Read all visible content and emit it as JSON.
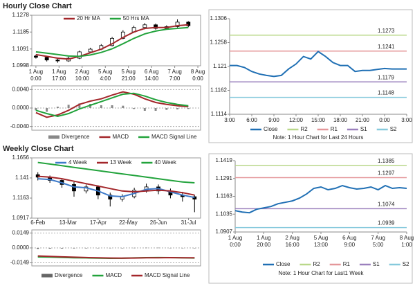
{
  "headings": [
    "Hourly Close Chart",
    "Weekly Close Chart"
  ],
  "chart_data": [
    {
      "type": "candlestick",
      "legend": "top",
      "x": [
        0,
        8,
        16,
        24,
        32,
        40,
        48,
        56,
        64,
        72,
        80,
        88,
        96,
        104,
        112
      ],
      "ohlc": {
        "open": [
          1.1052,
          1.1045,
          1.103,
          1.1025,
          1.104,
          1.1075,
          1.109,
          1.111,
          1.115,
          1.1185,
          1.121,
          1.1225,
          1.1205,
          1.1215,
          1.124
        ],
        "high": [
          1.106,
          1.105,
          1.1038,
          1.1048,
          1.1082,
          1.1098,
          1.1118,
          1.1158,
          1.1195,
          1.122,
          1.1235,
          1.1232,
          1.1222,
          1.1255,
          1.1245
        ],
        "low": [
          1.1038,
          1.1022,
          1.1015,
          1.102,
          1.1035,
          1.1068,
          1.1085,
          1.1105,
          1.1145,
          1.118,
          1.12,
          1.1198,
          1.1198,
          1.121,
          1.1212
        ],
        "close": [
          1.1045,
          1.103,
          1.1025,
          1.104,
          1.1075,
          1.109,
          1.111,
          1.115,
          1.1185,
          1.121,
          1.1225,
          1.1205,
          1.1215,
          1.124,
          1.122
        ]
      },
      "series": [
        {
          "name": "20 Hr MA",
          "color": "#a3262a",
          "values": [
            1.106,
            1.105,
            1.104,
            1.1035,
            1.105,
            1.107,
            1.109,
            1.112,
            1.1155,
            1.1185,
            1.1205,
            1.121,
            1.121,
            1.122,
            1.1225
          ]
        },
        {
          "name": "50 Hrs MA",
          "color": "#22a33c",
          "values": [
            1.1075,
            1.1068,
            1.106,
            1.1052,
            1.105,
            1.1058,
            1.1072,
            1.1092,
            1.112,
            1.115,
            1.1175,
            1.119,
            1.12,
            1.1205,
            1.121
          ]
        }
      ],
      "xlim": [
        -3,
        121
      ],
      "xticks": [
        {
          "value": 0,
          "label": [
            "1 Aug",
            "0:00"
          ]
        },
        {
          "value": 17,
          "label": [
            "1 Aug",
            "17:00"
          ]
        },
        {
          "value": 34,
          "label": [
            "2 Aug",
            "10:00"
          ]
        },
        {
          "value": 51,
          "label": [
            "5 Aug",
            "4:00"
          ]
        },
        {
          "value": 68,
          "label": [
            "5 Aug",
            "21:00"
          ]
        },
        {
          "value": 85,
          "label": [
            "6 Aug",
            "14:00"
          ]
        },
        {
          "value": 102,
          "label": [
            "7 Aug",
            "7:00"
          ]
        },
        {
          "value": 119,
          "label": [
            "8 Aug",
            "0:00"
          ]
        }
      ],
      "ylim": [
        1.0998,
        1.1278
      ],
      "yticks": [
        1.0998,
        1.1091,
        1.1185,
        1.1278
      ],
      "grid": false
    },
    {
      "type": "macd",
      "legend": "bottom",
      "x": [
        0,
        8,
        16,
        24,
        32,
        40,
        48,
        56,
        64,
        72,
        80,
        88,
        96,
        104,
        112
      ],
      "series": [
        {
          "name": "Divergence",
          "color": "#888888",
          "kind": "bar",
          "values": [
            -0.0005,
            -0.0008,
            0.0003,
            0.0007,
            0.001,
            0.0009,
            0.0006,
            0.0006,
            0.0005,
            -0.0002,
            -0.0006,
            -0.0006,
            -0.0004,
            -0.0003,
            -0.0002
          ]
        },
        {
          "name": "MACD",
          "color": "#a3262a",
          "values": [
            -0.001,
            -0.002,
            -0.0015,
            -0.0005,
            0.0008,
            0.0015,
            0.002,
            0.0028,
            0.0035,
            0.003,
            0.002,
            0.0012,
            0.0008,
            0.0005,
            0.0003
          ]
        },
        {
          "name": "MACD Signal Line",
          "color": "#22a33c",
          "values": [
            -0.0005,
            -0.0012,
            -0.0018,
            -0.0012,
            -0.0002,
            0.0006,
            0.0014,
            0.0022,
            0.003,
            0.0032,
            0.0026,
            0.0018,
            0.0012,
            0.0008,
            0.0005
          ]
        }
      ],
      "xlim": [
        -3,
        121
      ],
      "ylim": [
        -0.0048,
        0.0048
      ],
      "yticks": [
        {
          "value": 0.004,
          "label": "0.0040"
        },
        {
          "value": 0,
          "label": "0.0000"
        },
        {
          "value": -0.004,
          "label": "-0.0040"
        }
      ],
      "grid": true
    },
    {
      "type": "line",
      "legend": "bottom",
      "note": "Note: 1 Hour Chart for Last 24 Hours",
      "x": [
        0,
        1,
        2,
        3,
        4,
        5,
        6,
        7,
        8,
        9,
        10,
        11,
        12,
        13,
        14,
        15,
        16,
        17,
        18,
        19,
        20,
        21,
        22,
        23,
        24
      ],
      "series": [
        {
          "name": "Close",
          "color": "#1f6fb4",
          "values": [
            1.1212,
            1.1212,
            1.1208,
            1.12,
            1.1195,
            1.1192,
            1.119,
            1.1192,
            1.1205,
            1.1215,
            1.123,
            1.1225,
            1.124,
            1.123,
            1.1218,
            1.1212,
            1.1212,
            1.12,
            1.1202,
            1.1202,
            1.1204,
            1.1206,
            1.1205,
            1.1205,
            1.1205
          ]
        }
      ],
      "levels": [
        {
          "name": "R2",
          "color": "#b9d88a",
          "value": 1.1273
        },
        {
          "name": "R1",
          "color": "#e4979a",
          "value": 1.1241
        },
        {
          "name": "S1",
          "color": "#9b80bd",
          "value": 1.1179
        },
        {
          "name": "S2",
          "color": "#86c9dc",
          "value": 1.1148
        }
      ],
      "xlim": [
        0,
        24
      ],
      "xticks": [
        {
          "value": 0,
          "label": "3:00"
        },
        {
          "value": 3,
          "label": "6:00"
        },
        {
          "value": 6,
          "label": "9:00"
        },
        {
          "value": 9,
          "label": "12:00"
        },
        {
          "value": 12,
          "label": "15:00"
        },
        {
          "value": 15,
          "label": "18:00"
        },
        {
          "value": 18,
          "label": "21:00"
        },
        {
          "value": 21,
          "label": "0:00"
        },
        {
          "value": 24,
          "label": "3:00"
        }
      ],
      "ylim": [
        1.1114,
        1.1306
      ],
      "yticks": [
        1.1114,
        1.1162,
        1.121,
        1.1258,
        1.1306
      ],
      "grid": false
    },
    {
      "type": "candlestick",
      "legend": "top",
      "x": [
        0,
        2,
        4,
        6,
        8,
        10,
        12,
        14,
        16,
        18,
        20,
        22,
        24,
        26
      ],
      "ohlc": {
        "open": [
          1.145,
          1.142,
          1.138,
          1.133,
          1.125,
          1.13,
          1.12,
          1.115,
          1.118,
          1.126,
          1.13,
          1.125,
          1.12,
          1.118
        ],
        "high": [
          1.148,
          1.144,
          1.14,
          1.136,
          1.133,
          1.132,
          1.123,
          1.121,
          1.129,
          1.134,
          1.133,
          1.128,
          1.124,
          1.12
        ],
        "low": [
          1.138,
          1.135,
          1.129,
          1.118,
          1.122,
          1.115,
          1.106,
          1.112,
          1.116,
          1.123,
          1.121,
          1.116,
          1.112,
          1.099
        ],
        "close": [
          1.142,
          1.138,
          1.133,
          1.125,
          1.13,
          1.12,
          1.115,
          1.118,
          1.126,
          1.13,
          1.125,
          1.12,
          1.118,
          1.115
        ]
      },
      "series": [
        {
          "name": "4 Week",
          "color": "#3d7ac9",
          "values": [
            1.14,
            1.139,
            1.135,
            1.13,
            1.129,
            1.125,
            1.119,
            1.118,
            1.122,
            1.127,
            1.128,
            1.124,
            1.12,
            1.117
          ]
        },
        {
          "name": "13 Week",
          "color": "#a3262a",
          "values": [
            1.143,
            1.142,
            1.14,
            1.137,
            1.134,
            1.131,
            1.128,
            1.125,
            1.124,
            1.125,
            1.126,
            1.125,
            1.123,
            1.12
          ]
        },
        {
          "name": "40 Week",
          "color": "#22a33c",
          "values": [
            1.16,
            1.158,
            1.156,
            1.154,
            1.152,
            1.15,
            1.148,
            1.146,
            1.144,
            1.142,
            1.14,
            1.138,
            1.136,
            1.135
          ]
        }
      ],
      "xlim": [
        -1,
        27
      ],
      "xticks": [
        {
          "value": 0,
          "label": [
            "6-Feb"
          ]
        },
        {
          "value": 5,
          "label": [
            "13-Mar"
          ]
        },
        {
          "value": 10,
          "label": [
            "17-Apr"
          ]
        },
        {
          "value": 15,
          "label": [
            "22-May"
          ]
        },
        {
          "value": 20,
          "label": [
            "26-Jun"
          ]
        },
        {
          "value": 25,
          "label": [
            "31-Jul"
          ]
        }
      ],
      "ylim": [
        1.0917,
        1.1656
      ],
      "yticks": [
        1.0917,
        1.1163,
        1.141,
        1.1656
      ],
      "grid": false
    },
    {
      "type": "macd",
      "legend": "bottom",
      "x": [
        0,
        2,
        4,
        6,
        8,
        10,
        12,
        14,
        16,
        18,
        20,
        22,
        24,
        26
      ],
      "series": [
        {
          "name": "Divergence",
          "color": "#666666",
          "kind": "bar",
          "values": [
            -0.001,
            -0.0007,
            -0.0006,
            -0.0005,
            -0.0004,
            -0.0003,
            -0.0003,
            -0.0001,
            0.0001,
            0.0002,
            0.0002,
            0,
            -0.0001,
            -0.0002
          ]
        },
        {
          "name": "MACD",
          "color": "#22a33c",
          "values": [
            -0.009,
            -0.0092,
            -0.0095,
            -0.0098,
            -0.01,
            -0.0102,
            -0.0104,
            -0.0103,
            -0.01,
            -0.0097,
            -0.0096,
            -0.0097,
            -0.0099,
            -0.0101
          ]
        },
        {
          "name": "MACD Signal Line",
          "color": "#a3262a",
          "values": [
            -0.008,
            -0.0085,
            -0.0089,
            -0.0093,
            -0.0096,
            -0.0099,
            -0.0101,
            -0.0102,
            -0.0101,
            -0.0099,
            -0.0098,
            -0.0097,
            -0.0098,
            -0.0099
          ]
        }
      ],
      "xlim": [
        -1,
        27
      ],
      "ylim": [
        -0.018,
        0.018
      ],
      "yticks": [
        {
          "value": 0.0149,
          "label": "0.0149"
        },
        {
          "value": 0,
          "label": "0.0000"
        },
        {
          "value": -0.0149,
          "label": "-0.0149"
        }
      ],
      "grid": true
    },
    {
      "type": "line",
      "legend": "bottom",
      "note": "Note: 1 Hour Chart for Last1 Week",
      "x": [
        0,
        5,
        10,
        15,
        20,
        25,
        30,
        35,
        40,
        45,
        50,
        55,
        60,
        65,
        70,
        75,
        80,
        85,
        90,
        95,
        100,
        105,
        110,
        115,
        120
      ],
      "series": [
        {
          "name": "Close",
          "color": "#1f6fb4",
          "values": [
            1.106,
            1.105,
            1.1045,
            1.107,
            1.108,
            1.109,
            1.111,
            1.112,
            1.113,
            1.115,
            1.118,
            1.122,
            1.123,
            1.121,
            1.122,
            1.124,
            1.1225,
            1.1215,
            1.122,
            1.123,
            1.121,
            1.124,
            1.122,
            1.1225,
            1.122
          ]
        }
      ],
      "levels": [
        {
          "name": "R2",
          "color": "#b9d88a",
          "value": 1.1385
        },
        {
          "name": "R1",
          "color": "#e4979a",
          "value": 1.1297
        },
        {
          "name": "S1",
          "color": "#9b80bd",
          "value": 1.1074
        },
        {
          "name": "S2",
          "color": "#86c9dc",
          "value": 1.0939
        }
      ],
      "xlim": [
        0,
        120
      ],
      "xticks": [
        {
          "value": 0,
          "label": [
            "1 Aug",
            "0:00"
          ]
        },
        {
          "value": 20,
          "label": [
            "1 Aug",
            "20:00"
          ]
        },
        {
          "value": 40,
          "label": [
            "2 Aug",
            "16:00"
          ]
        },
        {
          "value": 60,
          "label": [
            "5 Aug",
            "13:00"
          ]
        },
        {
          "value": 80,
          "label": [
            "6 Aug",
            "9:00"
          ]
        },
        {
          "value": 100,
          "label": [
            "7 Aug",
            "5:00"
          ]
        },
        {
          "value": 120,
          "label": [
            "8 Aug",
            "1:00"
          ]
        }
      ],
      "ylim": [
        1.0907,
        1.1419
      ],
      "yticks": [
        1.0907,
        1.1035,
        1.1163,
        1.1291,
        1.1419
      ],
      "grid": false
    }
  ]
}
